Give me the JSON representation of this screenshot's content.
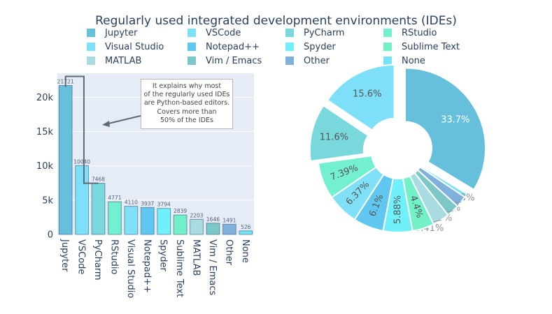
{
  "chart_data": [
    {
      "type": "bar",
      "title": "Regularly used integrated development environments (IDEs)",
      "categories": [
        "Jupyter",
        "VSCode",
        "PyCharm",
        "RStudio",
        "Visual Studio",
        "Notepad++",
        "Spyder",
        "Sublime Text",
        "MATLAB",
        "Vim / Emacs",
        "Other",
        "None"
      ],
      "values": [
        21721,
        10040,
        7468,
        4771,
        4110,
        3937,
        3794,
        2839,
        2203,
        1646,
        1491,
        526
      ],
      "colors": [
        "#66c0dc",
        "#7ee0f8",
        "#79d8dc",
        "#72f0d0",
        "#80e0f8",
        "#60c8f0",
        "#70f0fa",
        "#72f0c8",
        "#a8dce0",
        "#7cc8c8",
        "#80b0dc",
        "#76e4f8"
      ],
      "ylim": [
        0,
        23500
      ],
      "y_ticks": [
        0,
        5000,
        10000,
        15000,
        20000
      ],
      "y_tick_labels": [
        "0",
        "5k",
        "10k",
        "15k",
        "20k"
      ],
      "grid": true,
      "annotation": {
        "text_lines": [
          "It explains why most",
          "of the regularly used IDEs",
          "are Python-based editors.",
          "Covers more than",
          "50% of the IDEs"
        ]
      }
    },
    {
      "type": "pie",
      "hole": true,
      "labels": [
        "Jupyter",
        "None",
        "Other",
        "Vim / Emacs",
        "MATLAB",
        "Sublime Text",
        "Spyder",
        "Notepad++",
        "Visual Studio",
        "RStudio",
        "PyCharm",
        "VSCode"
      ],
      "percent_labels": [
        "33.7%",
        "0.815%",
        "2.31%",
        "2.55%",
        "3.41%",
        "4.4%",
        "5.88%",
        "6.1%",
        "6.37%",
        "7.39%",
        "11.6%",
        "15.6%"
      ],
      "values": [
        33.7,
        0.815,
        2.31,
        2.55,
        3.41,
        4.4,
        5.88,
        6.1,
        6.37,
        7.39,
        11.6,
        15.6
      ],
      "colors": [
        "#66c0dc",
        "#76e4f8",
        "#80b0dc",
        "#7cc8c8",
        "#a8dce0",
        "#72f0c8",
        "#70f0fa",
        "#60c8f0",
        "#80e0f8",
        "#72f0d0",
        "#79d8dc",
        "#7ee0f8"
      ],
      "pulled": [
        true,
        false,
        false,
        false,
        false,
        false,
        false,
        false,
        false,
        false,
        true,
        true
      ]
    }
  ],
  "legend": [
    {
      "label": "Jupyter",
      "color": "#66c0dc"
    },
    {
      "label": "VSCode",
      "color": "#7ee0f8"
    },
    {
      "label": "PyCharm",
      "color": "#79d8dc"
    },
    {
      "label": "RStudio",
      "color": "#72f0d0"
    },
    {
      "label": "Visual Studio",
      "color": "#80e0f8"
    },
    {
      "label": "Notepad++",
      "color": "#60c8f0"
    },
    {
      "label": "Spyder",
      "color": "#70f0fa"
    },
    {
      "label": "Sublime Text",
      "color": "#72f0c8"
    },
    {
      "label": "MATLAB",
      "color": "#a8dce0"
    },
    {
      "label": "Vim / Emacs",
      "color": "#7cc8c8"
    },
    {
      "label": "Other",
      "color": "#80b0dc"
    },
    {
      "label": "None",
      "color": "#76e4f8"
    }
  ]
}
